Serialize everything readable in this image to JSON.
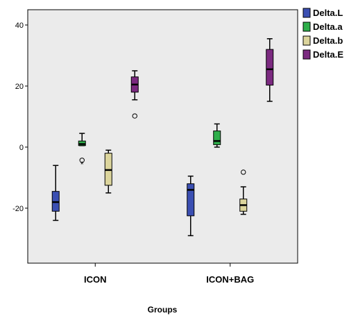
{
  "chart_data": {
    "type": "boxplot",
    "xlabel": "Groups",
    "ylabel": "",
    "ylim": [
      -38,
      45
    ],
    "yticks": [
      40,
      20,
      0,
      -20
    ],
    "ytick_labels": [
      "40",
      "20",
      "0",
      "-20"
    ],
    "categories": [
      "ICON",
      "ICON+BAG"
    ],
    "legend_position": "right",
    "grid": false,
    "background_color": "#ebebeb",
    "series": [
      {
        "name": "Delta.L",
        "color": "#3b4fb2",
        "boxes": [
          {
            "category": "ICON",
            "min": -24,
            "q1": -21,
            "median": -18,
            "q3": -14.5,
            "max": -6,
            "outliers": []
          },
          {
            "category": "ICON+BAG",
            "min": -29,
            "q1": -22.5,
            "median": -14,
            "q3": -12,
            "max": -9.5,
            "outliers": []
          }
        ]
      },
      {
        "name": "Delta.a",
        "color": "#2eae4a",
        "boxes": [
          {
            "category": "ICON",
            "min": 0.5,
            "q1": 0.5,
            "median": 1,
            "q3": 2,
            "max": 4.5,
            "outliers": [
              {
                "y": -4.3,
                "marker": "circle"
              },
              {
                "y": -5.5,
                "marker": "star"
              }
            ]
          },
          {
            "category": "ICON+BAG",
            "min": 0,
            "q1": 0.8,
            "median": 2,
            "q3": 5.3,
            "max": 7.6,
            "outliers": []
          }
        ]
      },
      {
        "name": "Delta.b",
        "color": "#dcd59c",
        "boxes": [
          {
            "category": "ICON",
            "min": -15,
            "q1": -12.5,
            "median": -7.5,
            "q3": -2,
            "max": -1,
            "outliers": []
          },
          {
            "category": "ICON+BAG",
            "min": -22,
            "q1": -21,
            "median": -19,
            "q3": -17,
            "max": -13,
            "outliers": [
              {
                "y": -8.2,
                "marker": "circle"
              }
            ]
          }
        ]
      },
      {
        "name": "Delta.E",
        "color": "#7b2a80",
        "boxes": [
          {
            "category": "ICON",
            "min": 15.5,
            "q1": 18,
            "median": 20.5,
            "q3": 23,
            "max": 25,
            "outliers": [
              {
                "y": 10.2,
                "marker": "circle"
              }
            ]
          },
          {
            "category": "ICON+BAG",
            "min": 15,
            "q1": 20.3,
            "median": 25.5,
            "q3": 32,
            "max": 35.5,
            "outliers": []
          }
        ]
      }
    ]
  }
}
